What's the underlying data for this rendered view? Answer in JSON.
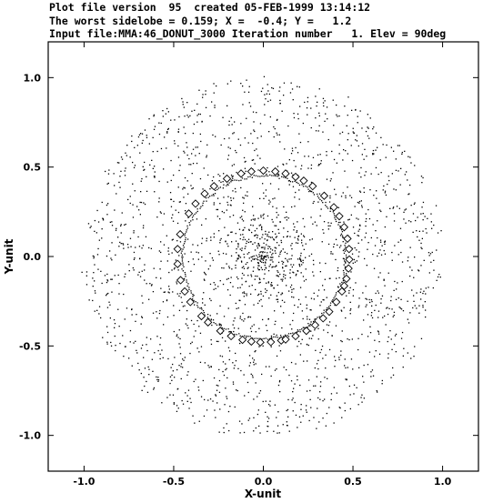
{
  "header": {
    "line1": "Plot file version  95  created 05-FEB-1999 13:14:12",
    "line2": "The worst sidelobe = 0.159; X =  -0.4; Y =   1.2",
    "line3": "Input file:MMA:46_DONUT_3000 Iteration number   1. Elev = 90deg"
  },
  "chart_data": {
    "type": "scatter",
    "title": "",
    "xlabel": "X-unit",
    "ylabel": "Y-unit",
    "xlim": [
      -1.2,
      1.2
    ],
    "ylim": [
      -1.2,
      1.2
    ],
    "xticks": [
      -1.0,
      -0.5,
      0.0,
      0.5,
      1.0
    ],
    "xtick_labels": [
      "-1.0",
      "-0.5",
      "0.0",
      "0.5",
      "1.0"
    ],
    "yticks": [
      1.0,
      0.5,
      0.0,
      -0.5,
      -1.0
    ],
    "ytick_labels": [
      "1.0",
      "0.5",
      "0.0",
      "-0.5",
      "-1.0"
    ],
    "grid": false,
    "series": [
      {
        "kind": "uv-points",
        "marker": "dot",
        "description_count": 3000,
        "outer_radius": 1.0
      },
      {
        "kind": "antenna-ring",
        "marker": "diamond",
        "ring_radius": 0.48,
        "angles_deg": [
          75,
          82,
          90,
          98,
          105,
          125,
          133,
          142,
          150,
          165,
          185,
          196,
          204,
          212,
          224,
          240,
          248,
          256,
          262,
          268,
          275,
          282,
          292,
          300,
          307,
          314,
          320,
          328,
          336,
          345,
          352,
          358,
          5,
          12,
          20,
          28,
          35,
          45,
          55,
          62,
          68,
          115,
          175,
          230,
          285,
          340
        ]
      }
    ]
  }
}
